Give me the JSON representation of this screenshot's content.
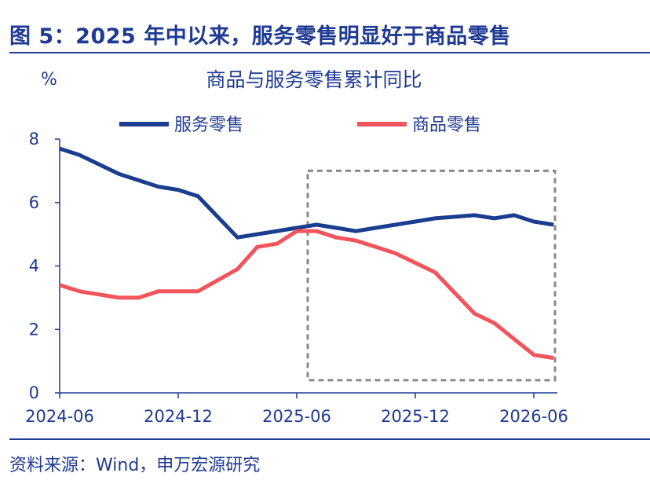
{
  "figure": {
    "title": "图 5：2025 年中以来，服务零售明显好于商品零售",
    "source": "资料来源：Wind，申万宏源研究"
  },
  "chart_data": {
    "type": "line",
    "title": "商品与服务零售累计同比",
    "ylabel": "%",
    "ylim": [
      0,
      8
    ],
    "yticks": [
      0,
      2,
      4,
      6,
      8
    ],
    "xlim": [
      "2024-06",
      "2026-06"
    ],
    "xticks": [
      "2024-06",
      "2024-12",
      "2025-06",
      "2025-12",
      "2026-06"
    ],
    "grid": false,
    "legend_position": "top",
    "highlight_box": {
      "from": "2025-06",
      "to": "2026-06",
      "ymin": 0.4,
      "ymax": 7.0
    },
    "series": [
      {
        "name": "服务零售",
        "color": "#1a3d8f",
        "points": [
          [
            "2024-06",
            7.7
          ],
          [
            "2024-07",
            7.5
          ],
          [
            "2024-08",
            7.2
          ],
          [
            "2024-09",
            6.9
          ],
          [
            "2024-10",
            6.7
          ],
          [
            "2024-11",
            6.5
          ],
          [
            "2024-12",
            6.4
          ],
          [
            "2025-01",
            6.2
          ],
          [
            "2025-03",
            4.9
          ],
          [
            "2025-04",
            5.0
          ],
          [
            "2025-05",
            5.1
          ],
          [
            "2025-06",
            5.2
          ],
          [
            "2025-07",
            5.3
          ],
          [
            "2025-08",
            5.2
          ],
          [
            "2025-09",
            5.1
          ],
          [
            "2025-10",
            5.2
          ],
          [
            "2025-11",
            5.3
          ],
          [
            "2025-12",
            5.4
          ],
          [
            "2026-01",
            5.5
          ],
          [
            "2026-03",
            5.6
          ],
          [
            "2026-04",
            5.5
          ],
          [
            "2026-05",
            5.6
          ],
          [
            "2026-06",
            5.4
          ],
          [
            "2026-07",
            5.3
          ]
        ]
      },
      {
        "name": "商品零售",
        "color": "#f2545b",
        "points": [
          [
            "2024-06",
            3.4
          ],
          [
            "2024-07",
            3.2
          ],
          [
            "2024-08",
            3.1
          ],
          [
            "2024-09",
            3.0
          ],
          [
            "2024-10",
            3.0
          ],
          [
            "2024-11",
            3.2
          ],
          [
            "2024-12",
            3.2
          ],
          [
            "2025-01",
            3.2
          ],
          [
            "2025-03",
            3.9
          ],
          [
            "2025-04",
            4.6
          ],
          [
            "2025-05",
            4.7
          ],
          [
            "2025-06",
            5.1
          ],
          [
            "2025-07",
            5.1
          ],
          [
            "2025-08",
            4.9
          ],
          [
            "2025-09",
            4.8
          ],
          [
            "2025-10",
            4.6
          ],
          [
            "2025-11",
            4.4
          ],
          [
            "2025-12",
            4.1
          ],
          [
            "2026-01",
            3.8
          ],
          [
            "2026-03",
            2.5
          ],
          [
            "2026-04",
            2.2
          ],
          [
            "2026-05",
            1.7
          ],
          [
            "2026-06",
            1.2
          ],
          [
            "2026-07",
            1.1
          ]
        ]
      }
    ]
  }
}
